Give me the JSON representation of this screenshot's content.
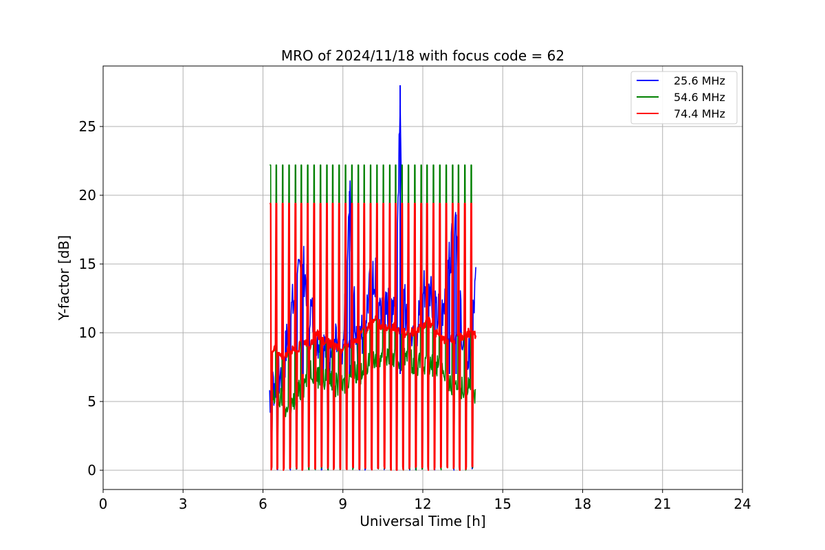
{
  "chart_data": {
    "type": "line",
    "title": "MRO of 2024/11/18 with focus code = 62",
    "xlabel": "Universal Time [h]",
    "ylabel": "Y-factor [dB]",
    "xlim": [
      0,
      24
    ],
    "ylim": [
      -1.4,
      29.4
    ],
    "xticks": [
      "0",
      "3",
      "6",
      "9",
      "12",
      "15",
      "18",
      "21",
      "24"
    ],
    "yticks": [
      "0",
      "5",
      "10",
      "15",
      "20",
      "25"
    ],
    "grid": true,
    "legend_position": "top-right",
    "series": [
      {
        "name": "25.6 MHz",
        "color": "#0000ff",
        "x": [
          6.25,
          6.5,
          6.75,
          7.0,
          7.25,
          7.5,
          7.75,
          8.0,
          8.25,
          8.5,
          8.75,
          9.0,
          9.25,
          9.5,
          9.75,
          10.0,
          10.25,
          10.5,
          10.75,
          11.0,
          11.15,
          11.25,
          11.5,
          11.75,
          12.0,
          12.25,
          12.5,
          12.75,
          13.0,
          13.25,
          13.5,
          13.75,
          14.0
        ],
        "y": [
          5.8,
          6.5,
          7.0,
          11.0,
          13.0,
          15.0,
          12.0,
          10.0,
          9.0,
          8.5,
          9.0,
          8.0,
          20.3,
          9.0,
          10.0,
          13.0,
          14.0,
          11.0,
          12.0,
          13.0,
          28.0,
          12.5,
          11.0,
          10.0,
          13.0,
          14.0,
          11.0,
          12.0,
          15.5,
          18.6,
          9.0,
          8.0,
          13.8
        ]
      },
      {
        "name": "54.6 MHz",
        "color": "#008000",
        "x": [
          6.25,
          6.5,
          6.75,
          7.0,
          7.25,
          7.5,
          7.75,
          8.0,
          8.25,
          8.5,
          8.75,
          9.0,
          9.25,
          9.5,
          9.75,
          10.0,
          10.25,
          10.5,
          10.75,
          11.0,
          11.25,
          11.5,
          11.75,
          12.0,
          12.25,
          12.5,
          12.75,
          13.0,
          13.25,
          13.5,
          13.75,
          14.0
        ],
        "y": [
          4.8,
          5.5,
          5.0,
          4.0,
          5.5,
          6.0,
          7.5,
          7.0,
          6.5,
          6.8,
          6.2,
          6.0,
          7.0,
          7.2,
          6.8,
          8.5,
          8.0,
          8.5,
          8.3,
          8.0,
          8.2,
          8.0,
          7.8,
          7.5,
          7.5,
          7.8,
          7.5,
          6.0,
          6.5,
          6.0,
          6.2,
          5.0
        ]
      },
      {
        "name": "74.4 MHz",
        "color": "#ff0000",
        "x": [
          6.25,
          6.5,
          6.75,
          7.0,
          7.25,
          7.5,
          7.75,
          8.0,
          8.25,
          8.5,
          8.75,
          9.0,
          9.25,
          9.5,
          9.75,
          10.0,
          10.25,
          10.5,
          10.75,
          11.0,
          11.25,
          11.5,
          11.75,
          12.0,
          12.25,
          12.5,
          12.75,
          13.0,
          13.25,
          13.5,
          13.75,
          14.0
        ],
        "y": [
          8.5,
          9.0,
          8.0,
          9.0,
          8.5,
          9.5,
          9.0,
          10.0,
          9.5,
          9.2,
          9.0,
          8.8,
          9.2,
          9.5,
          10.0,
          10.5,
          11.0,
          10.2,
          10.6,
          10.3,
          10.0,
          10.0,
          10.2,
          10.5,
          10.8,
          10.0,
          9.5,
          9.6,
          9.5,
          9.8,
          10.0,
          9.8
        ]
      }
    ],
    "calibration_pulses": {
      "count": 33,
      "start_h": 6.25,
      "end_h": 13.8,
      "high_db": {
        "54.6 MHz": 22.2,
        "74.4 MHz": 19.4
      },
      "low_db": 0
    }
  }
}
